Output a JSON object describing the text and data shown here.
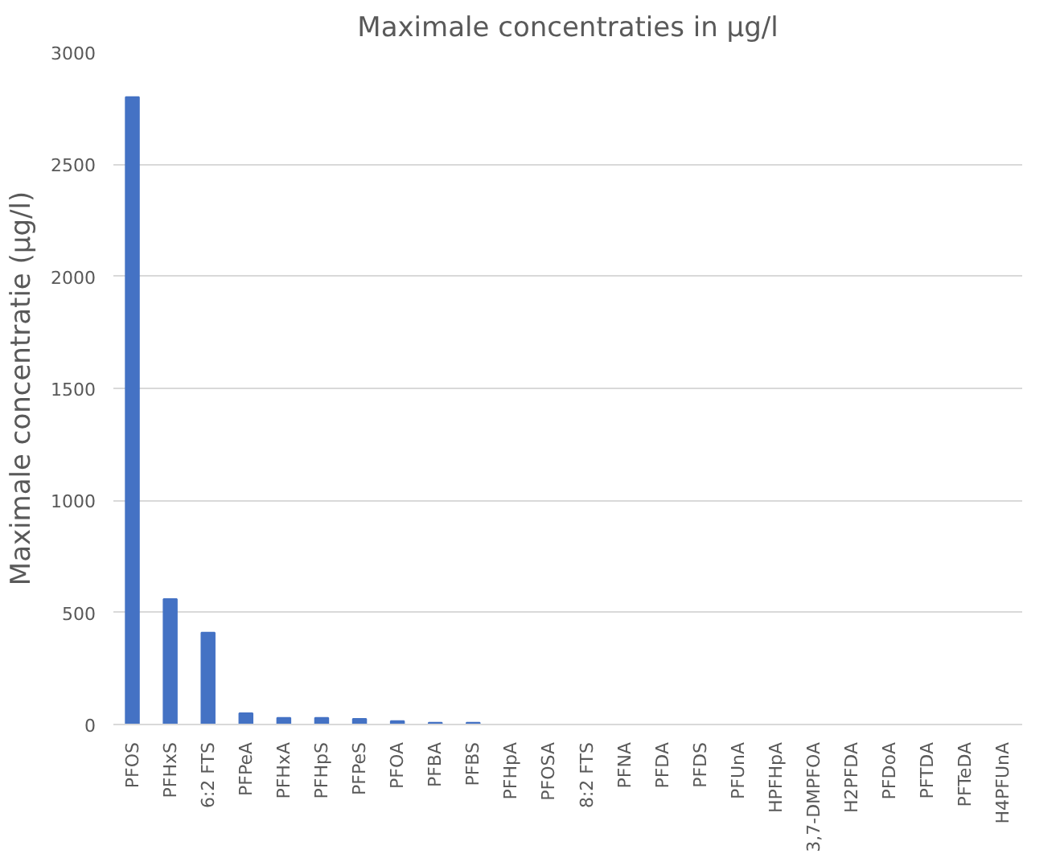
{
  "chart_data": {
    "type": "bar",
    "title": "Maximale concentraties in µg/l",
    "ylabel": "Maximale concentratie (µg/l)",
    "categories": [
      "PFOS",
      "PFHxS",
      "6:2 FTS",
      "PFPeA",
      "PFHxA",
      "PFHpS",
      "PFPeS",
      "PFOA",
      "PFBA",
      "PFBS",
      "PFHpA",
      "PFOSA",
      "8:2 FTS",
      "PFNA",
      "PFDA",
      "PFDS",
      "PFUnA",
      "HPFHpA",
      "3,7-DMPFOA",
      "H2PFDA",
      "PFDoA",
      "PFTDA",
      "PFTeDA",
      "H4PFUnA"
    ],
    "values": [
      2800,
      560,
      410,
      50,
      30,
      30,
      25,
      15,
      8,
      8,
      0,
      0,
      0,
      0,
      0,
      0,
      0,
      0,
      0,
      0,
      0,
      0,
      0,
      0
    ],
    "color": "#4472c4",
    "ylim": [
      0,
      3000
    ],
    "yticks": [
      0,
      500,
      1000,
      1500,
      2000,
      2500,
      3000
    ],
    "grid": "y"
  }
}
